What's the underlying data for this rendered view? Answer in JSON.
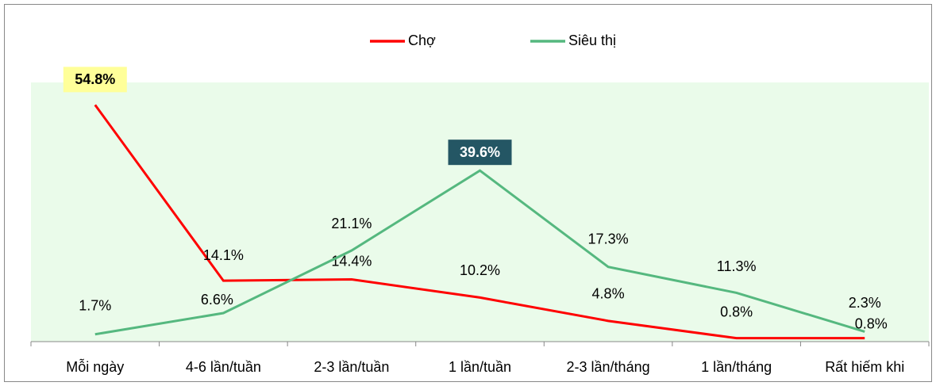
{
  "chart_data": {
    "type": "line",
    "categories": [
      "Mỗi ngày",
      "4-6 lần/tuần",
      "2-3 lần/tuần",
      "1 lần/tuần",
      "2-3 lần/tháng",
      "1 lần/tháng",
      "Rất hiếm khi"
    ],
    "series": [
      {
        "name": "Chợ",
        "color": "#ff0000",
        "values": [
          54.8,
          14.1,
          14.4,
          10.2,
          4.8,
          0.8,
          0.8
        ],
        "value_labels": [
          "54.8%",
          "14.1%",
          "14.4%",
          "10.2%",
          "4.8%",
          "0.8%",
          "0.8%"
        ]
      },
      {
        "name": "Siêu thị",
        "color": "#55b87f",
        "values": [
          1.7,
          6.6,
          21.1,
          39.6,
          17.3,
          11.3,
          2.3
        ],
        "value_labels": [
          "1.7%",
          "6.6%",
          "21.1%",
          "39.6%",
          "17.3%",
          "11.3%",
          "2.3%"
        ]
      }
    ],
    "ylim": [
      0,
      60
    ],
    "legend": "top"
  }
}
